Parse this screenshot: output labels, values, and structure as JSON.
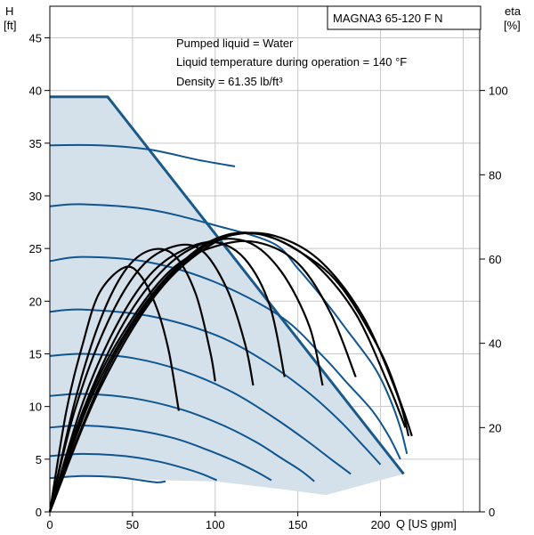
{
  "chart_data": {
    "type": "line",
    "title": "MAGNA3 65-120 F N",
    "annotations": [
      "Pumped liquid = Water",
      "Liquid temperature during operation = 140 °F",
      "Density = 61.35 lb/ft³"
    ],
    "x_axis": {
      "label": "Q [US gpm]",
      "min": 0,
      "max": 260,
      "ticks": [
        0,
        50,
        100,
        150,
        200
      ]
    },
    "y_axis_left": {
      "label": "H",
      "unit": "[ft]",
      "min": 0,
      "max": 48,
      "ticks": [
        0,
        5,
        10,
        15,
        20,
        25,
        30,
        35,
        40,
        45
      ]
    },
    "y_axis_right": {
      "label": "eta",
      "unit": "[%]",
      "min": 0,
      "max": 120,
      "ticks": [
        0,
        20,
        40,
        60,
        80,
        100
      ]
    },
    "grid": true,
    "colors": {
      "envelope_fill": "#d4e0ea",
      "envelope_edge": "#1a5a8a",
      "head_curves": "#0f5590",
      "efficiency_curves": "#000000"
    },
    "operating_envelope": [
      [
        0,
        39.4
      ],
      [
        35,
        39.4
      ],
      [
        214,
        3.6
      ],
      [
        167,
        1.6
      ],
      [
        143,
        2.1
      ],
      [
        100,
        2.9
      ],
      [
        68,
        3.0
      ],
      [
        30,
        3.3
      ],
      [
        0,
        3.3
      ]
    ],
    "head_curves": [
      {
        "shutoff_head": 39.4,
        "points": [
          [
            0,
            39.4
          ],
          [
            35,
            39.4
          ],
          [
            214,
            3.6
          ]
        ]
      },
      {
        "shutoff_head": 34.8,
        "points": [
          [
            0,
            34.8
          ],
          [
            30,
            34.8
          ],
          [
            60,
            34.4
          ],
          [
            90,
            33.4
          ],
          [
            112,
            32.8
          ]
        ]
      },
      {
        "shutoff_head": 29.0,
        "points": [
          [
            0,
            29.0
          ],
          [
            20,
            29.2
          ],
          [
            60,
            28.7
          ],
          [
            100,
            27.2
          ],
          [
            135,
            25.5
          ],
          [
            150,
            23.1
          ],
          [
            165,
            20.3
          ],
          [
            180,
            17.2
          ],
          [
            196,
            13.8
          ],
          [
            205,
            11.0
          ],
          [
            212,
            8.0
          ],
          [
            216,
            5.5
          ]
        ]
      },
      {
        "shutoff_head": 23.8,
        "points": [
          [
            0,
            23.8
          ],
          [
            20,
            24.2
          ],
          [
            60,
            23.7
          ],
          [
            100,
            21.8
          ],
          [
            140,
            18.5
          ],
          [
            165,
            14.8
          ],
          [
            180,
            12.2
          ],
          [
            195,
            9.6
          ],
          [
            205,
            7.2
          ],
          [
            212,
            5.0
          ]
        ]
      },
      {
        "shutoff_head": 19.0,
        "points": [
          [
            0,
            19.0
          ],
          [
            20,
            19.2
          ],
          [
            60,
            18.6
          ],
          [
            100,
            16.8
          ],
          [
            130,
            14.3
          ],
          [
            155,
            11.5
          ],
          [
            175,
            8.7
          ],
          [
            190,
            6.2
          ],
          [
            200,
            4.5
          ]
        ]
      },
      {
        "shutoff_head": 14.8,
        "points": [
          [
            0,
            14.8
          ],
          [
            20,
            15.0
          ],
          [
            50,
            14.6
          ],
          [
            80,
            13.4
          ],
          [
            110,
            11.4
          ],
          [
            135,
            9.0
          ],
          [
            155,
            6.8
          ],
          [
            170,
            5.0
          ],
          [
            182,
            3.6
          ]
        ]
      },
      {
        "shutoff_head": 11.0,
        "points": [
          [
            0,
            11.0
          ],
          [
            20,
            11.2
          ],
          [
            50,
            10.8
          ],
          [
            80,
            9.7
          ],
          [
            105,
            8.2
          ],
          [
            125,
            6.6
          ],
          [
            140,
            5.1
          ],
          [
            152,
            3.9
          ],
          [
            160,
            2.9
          ]
        ]
      },
      {
        "shutoff_head": 8.0,
        "points": [
          [
            0,
            8.0
          ],
          [
            20,
            8.2
          ],
          [
            50,
            7.8
          ],
          [
            75,
            7.0
          ],
          [
            95,
            5.9
          ],
          [
            112,
            4.8
          ],
          [
            125,
            3.8
          ],
          [
            134,
            3.0
          ]
        ]
      },
      {
        "shutoff_head": 5.3,
        "points": [
          [
            0,
            5.3
          ],
          [
            20,
            5.5
          ],
          [
            45,
            5.3
          ],
          [
            65,
            4.8
          ],
          [
            80,
            4.2
          ],
          [
            92,
            3.6
          ],
          [
            101,
            3.0
          ]
        ]
      },
      {
        "shutoff_head": 3.2,
        "points": [
          [
            0,
            3.2
          ],
          [
            20,
            3.4
          ],
          [
            40,
            3.3
          ],
          [
            55,
            3.0
          ],
          [
            65,
            2.8
          ],
          [
            70,
            2.9
          ]
        ]
      }
    ],
    "efficiency_curves": [
      {
        "points": [
          [
            0,
            0
          ],
          [
            10,
            24
          ],
          [
            20,
            40
          ],
          [
            30,
            52
          ],
          [
            45,
            58
          ],
          [
            55,
            56
          ],
          [
            65,
            48
          ],
          [
            72,
            38
          ],
          [
            78,
            24
          ]
        ]
      },
      {
        "points": [
          [
            0,
            0
          ],
          [
            15,
            26
          ],
          [
            30,
            45
          ],
          [
            45,
            57
          ],
          [
            60,
            62
          ],
          [
            75,
            61
          ],
          [
            88,
            52
          ],
          [
            97,
            38
          ],
          [
            100,
            31
          ]
        ]
      },
      {
        "points": [
          [
            0,
            0
          ],
          [
            15,
            24
          ],
          [
            35,
            45
          ],
          [
            55,
            58
          ],
          [
            75,
            63
          ],
          [
            92,
            62
          ],
          [
            107,
            53
          ],
          [
            118,
            40
          ],
          [
            123,
            30
          ]
        ]
      },
      {
        "points": [
          [
            0,
            0
          ],
          [
            20,
            26
          ],
          [
            40,
            44
          ],
          [
            60,
            56
          ],
          [
            80,
            62
          ],
          [
            100,
            64
          ],
          [
            118,
            60
          ],
          [
            133,
            49
          ],
          [
            142,
            32
          ]
        ]
      },
      {
        "points": [
          [
            0,
            0
          ],
          [
            20,
            24
          ],
          [
            45,
            45
          ],
          [
            70,
            58
          ],
          [
            95,
            64
          ],
          [
            120,
            64
          ],
          [
            140,
            57
          ],
          [
            157,
            44
          ],
          [
            165,
            30
          ]
        ]
      },
      {
        "points": [
          [
            0,
            0
          ],
          [
            25,
            28
          ],
          [
            50,
            46
          ],
          [
            75,
            58
          ],
          [
            100,
            63
          ],
          [
            125,
            64
          ],
          [
            150,
            59
          ],
          [
            170,
            47
          ],
          [
            185,
            32
          ]
        ]
      },
      {
        "points": [
          [
            0,
            0
          ],
          [
            25,
            27
          ],
          [
            55,
            48
          ],
          [
            85,
            61
          ],
          [
            110,
            66
          ],
          [
            135,
            65
          ],
          [
            160,
            59
          ],
          [
            185,
            47
          ],
          [
            205,
            30
          ],
          [
            215,
            20
          ]
        ]
      },
      {
        "points": [
          [
            0,
            0
          ],
          [
            30,
            30
          ],
          [
            60,
            50
          ],
          [
            90,
            62
          ],
          [
            115,
            66
          ],
          [
            140,
            65
          ],
          [
            165,
            59
          ],
          [
            190,
            46
          ],
          [
            210,
            28
          ],
          [
            217,
            18
          ]
        ]
      },
      {
        "points": [
          [
            0,
            0
          ],
          [
            30,
            29
          ],
          [
            65,
            52
          ],
          [
            100,
            64
          ],
          [
            125,
            66
          ],
          [
            150,
            62
          ],
          [
            175,
            54
          ],
          [
            200,
            38
          ],
          [
            213,
            25
          ],
          [
            219,
            18
          ]
        ]
      }
    ]
  }
}
